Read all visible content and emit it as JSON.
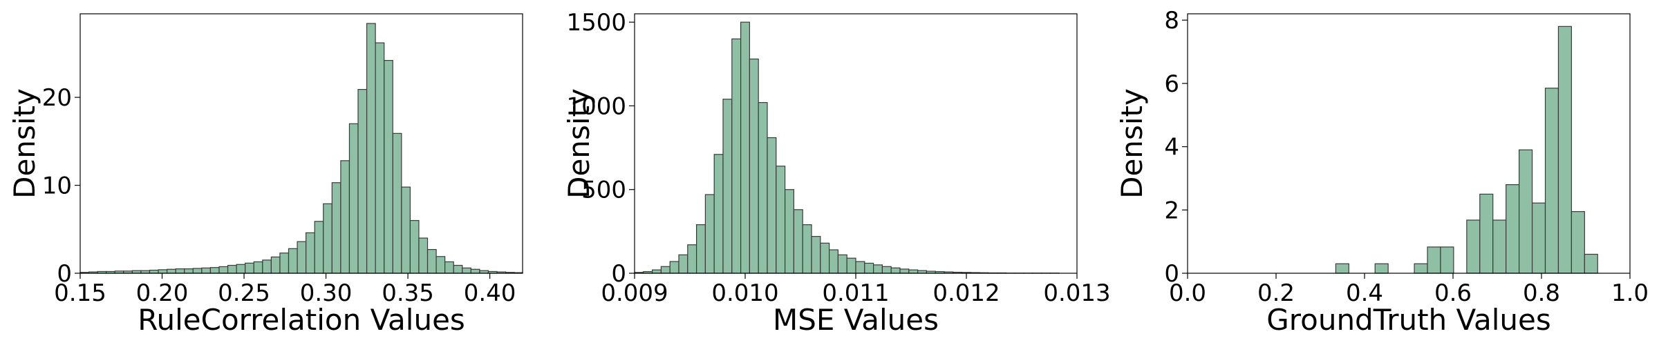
{
  "chart_data": [
    {
      "type": "bar",
      "subtype": "histogram",
      "xlabel": "RuleCorrelation Values",
      "ylabel": "Density",
      "xlim": [
        0.15,
        0.42
      ],
      "ylim": [
        0,
        29.5
      ],
      "xticks": [
        0.15,
        0.2,
        0.25,
        0.3,
        0.35,
        0.4
      ],
      "xtick_labels": [
        "0.15",
        "0.20",
        "0.25",
        "0.30",
        "0.35",
        "0.40"
      ],
      "yticks": [
        0,
        10,
        20
      ],
      "ytick_labels": [
        "0",
        "10",
        "20"
      ],
      "bin_start": 0.15,
      "bin_width": 0.0053,
      "values": [
        0.1,
        0.15,
        0.2,
        0.2,
        0.25,
        0.25,
        0.3,
        0.3,
        0.35,
        0.4,
        0.45,
        0.5,
        0.5,
        0.55,
        0.6,
        0.65,
        0.75,
        0.9,
        1.0,
        1.15,
        1.3,
        1.5,
        1.85,
        2.3,
        2.8,
        3.6,
        4.6,
        5.9,
        7.9,
        10.3,
        12.8,
        17.0,
        20.9,
        28.4,
        26.2,
        24.2,
        15.9,
        9.8,
        6.0,
        4.0,
        2.7,
        1.9,
        1.3,
        0.9,
        0.6,
        0.45,
        0.3,
        0.2,
        0.15,
        0.1,
        0.07
      ],
      "bar_color": "#8fbfa4",
      "edge_color": "#3a3a3a",
      "grid": false
    },
    {
      "type": "bar",
      "subtype": "histogram",
      "xlabel": "MSE Values",
      "ylabel": "Density",
      "xlim": [
        0.009,
        0.013
      ],
      "ylim": [
        0,
        1550
      ],
      "xticks": [
        0.009,
        0.01,
        0.011,
        0.012,
        0.013
      ],
      "xtick_labels": [
        "0.009",
        "0.010",
        "0.011",
        "0.012",
        "0.013"
      ],
      "yticks": [
        0,
        500,
        1000,
        1500
      ],
      "ytick_labels": [
        "0",
        "500",
        "1000",
        "1500"
      ],
      "bin_start": 0.009,
      "bin_width": 8e-05,
      "values": [
        5,
        10,
        20,
        40,
        70,
        110,
        170,
        290,
        470,
        710,
        1040,
        1400,
        1500,
        1280,
        1020,
        810,
        640,
        500,
        380,
        290,
        220,
        180,
        140,
        110,
        90,
        70,
        60,
        50,
        40,
        32,
        25,
        20,
        16,
        12,
        10,
        8,
        6,
        5,
        4,
        3,
        2,
        2,
        1,
        1,
        1,
        1,
        1,
        1,
        0,
        0
      ],
      "bar_color": "#8fbfa4",
      "edge_color": "#3a3a3a",
      "grid": false
    },
    {
      "type": "bar",
      "subtype": "histogram",
      "xlabel": "GroundTruth Values",
      "ylabel": "Density",
      "xlim": [
        0.0,
        1.0
      ],
      "ylim": [
        0,
        8.2
      ],
      "xticks": [
        0.0,
        0.2,
        0.4,
        0.6,
        0.8,
        1.0
      ],
      "xtick_labels": [
        "0.0",
        "0.2",
        "0.4",
        "0.6",
        "0.8",
        "1.0"
      ],
      "yticks": [
        0,
        2,
        4,
        6,
        8
      ],
      "ytick_labels": [
        "0",
        "2",
        "4",
        "6",
        "8"
      ],
      "bin_start": 0.335,
      "bin_width": 0.0296,
      "values": [
        0.3,
        0,
        0,
        0.3,
        0,
        0,
        0.3,
        0.83,
        0.83,
        0,
        1.68,
        2.5,
        1.68,
        2.8,
        3.9,
        2.22,
        5.85,
        7.8,
        1.95,
        0.6
      ],
      "bar_color": "#8fbfa4",
      "edge_color": "#3a3a3a",
      "grid": false
    }
  ]
}
